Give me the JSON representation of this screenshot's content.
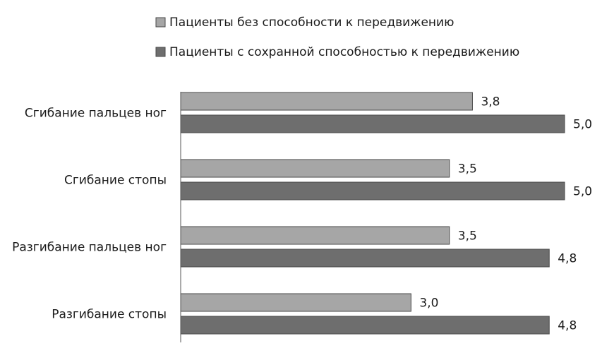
{
  "chart_data": {
    "type": "bar",
    "orientation": "horizontal",
    "categories": [
      "Сгибание пальцев ног",
      "Сгибание стопы",
      "Разгибание пальцев ног",
      "Разгибание стопы"
    ],
    "series": [
      {
        "name": "Пациенты без способности к передвижению",
        "color": "#a6a6a6",
        "values": [
          3.8,
          3.5,
          3.5,
          3.0
        ],
        "labels": [
          "3,8",
          "3,5",
          "3,5",
          "3,0"
        ]
      },
      {
        "name": "Пациенты с сохранной способностью к передвижению",
        "color": "#6e6e6e",
        "values": [
          5.0,
          5.0,
          4.8,
          4.8
        ],
        "labels": [
          "5,0",
          "5,0",
          "4,8",
          "4,8"
        ]
      }
    ],
    "xlim": [
      0,
      5
    ],
    "grid": false,
    "legend": "top"
  }
}
